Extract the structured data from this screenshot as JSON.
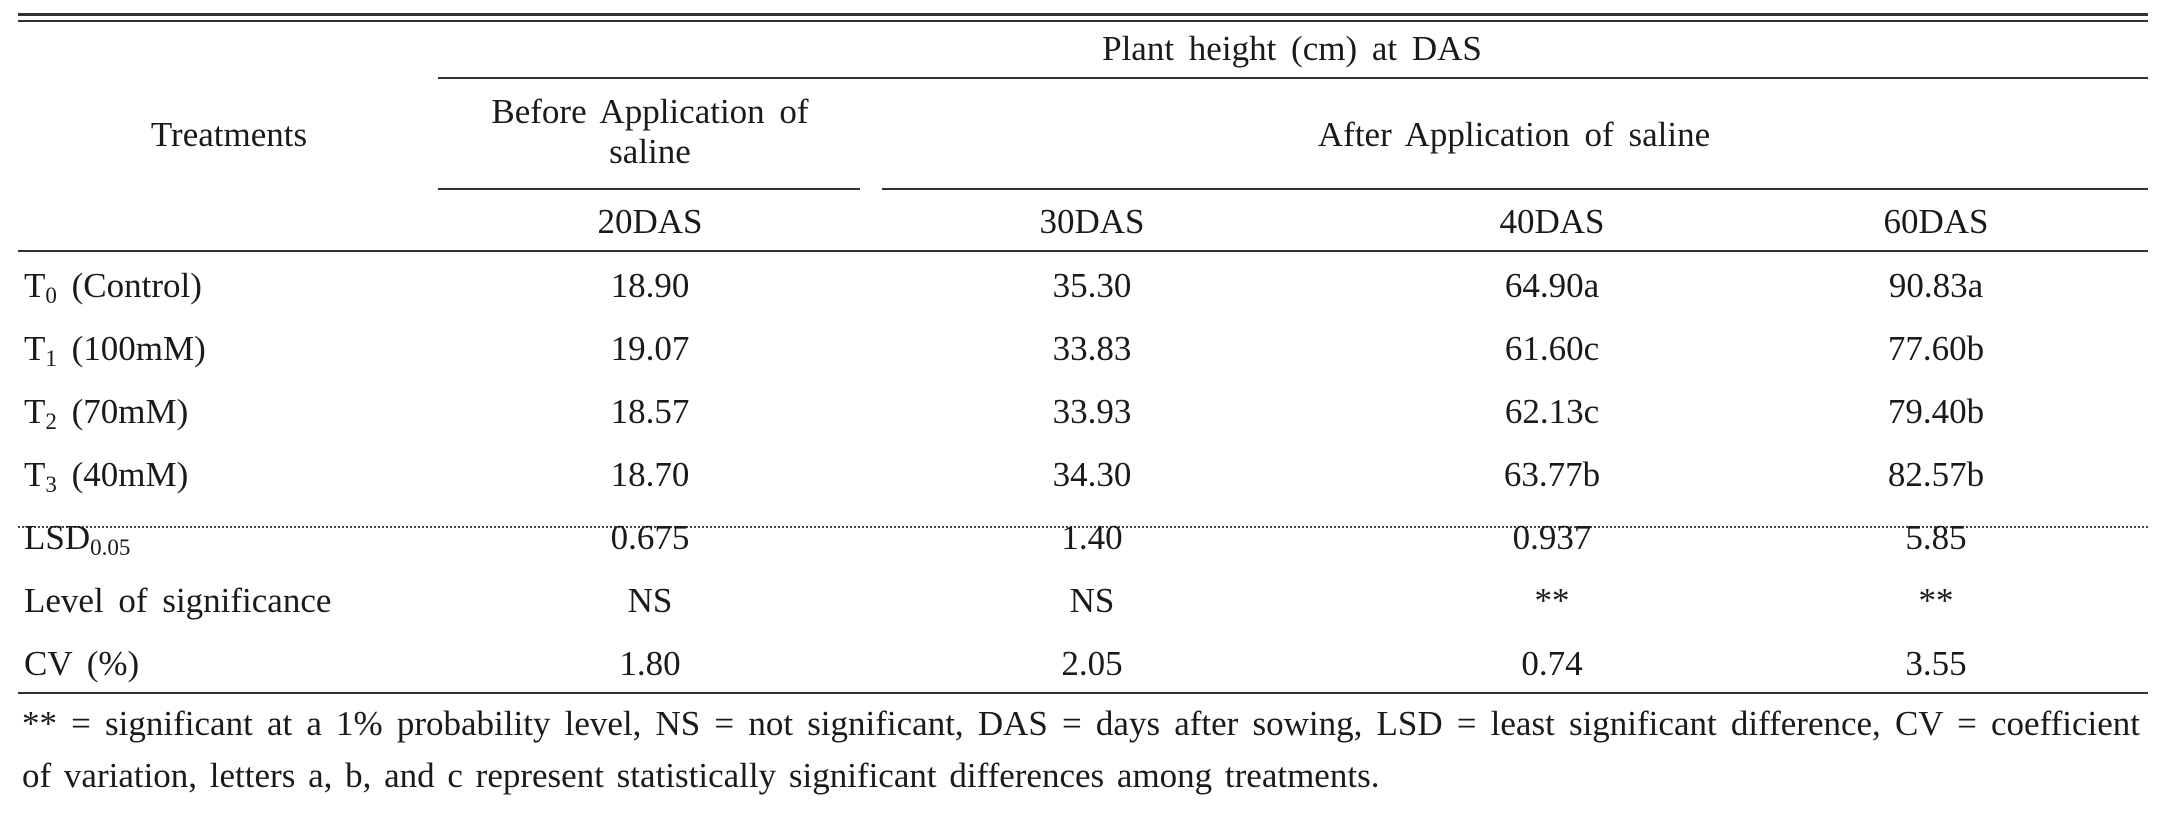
{
  "table": {
    "stub_header": "Treatments",
    "span_header": "Plant height (cm) at DAS",
    "group_before": "Before Application of saline",
    "group_after": "After Application of saline",
    "columns": [
      "20DAS",
      "30DAS",
      "40DAS",
      "60DAS"
    ],
    "rows": [
      {
        "sym": "T",
        "sub": "0",
        "rest": "(Control)",
        "values": [
          "18.90",
          "35.30",
          "64.90a",
          "90.83a"
        ]
      },
      {
        "sym": "T",
        "sub": "1",
        "rest": "(100mM)",
        "values": [
          "19.07",
          "33.83",
          "61.60c",
          "77.60b"
        ]
      },
      {
        "sym": "T",
        "sub": "2",
        "rest": "(70mM)",
        "values": [
          "18.57",
          "33.93",
          "62.13c",
          "79.40b"
        ]
      },
      {
        "sym": "T",
        "sub": "3",
        "rest": "(40mM)",
        "values": [
          "18.70",
          "34.30",
          "63.77b",
          "82.57b"
        ]
      }
    ],
    "stats": [
      {
        "label": "LSD",
        "sub": "0.05",
        "values": [
          "0.675",
          "1.40",
          "0.937",
          "5.85"
        ]
      },
      {
        "label": "Level of significance",
        "sub": "",
        "values": [
          "NS",
          "NS",
          "**",
          "**"
        ]
      },
      {
        "label": "CV (%)",
        "sub": "",
        "values": [
          "1.80",
          "2.05",
          "0.74",
          "3.55"
        ]
      }
    ],
    "footnote": "** = significant at a 1% probability level, NS = not significant, DAS = days after sowing, LSD = least significant difference, CV = coefficient of variation, letters a, b, and c represent statistically significant differences among treatments."
  }
}
